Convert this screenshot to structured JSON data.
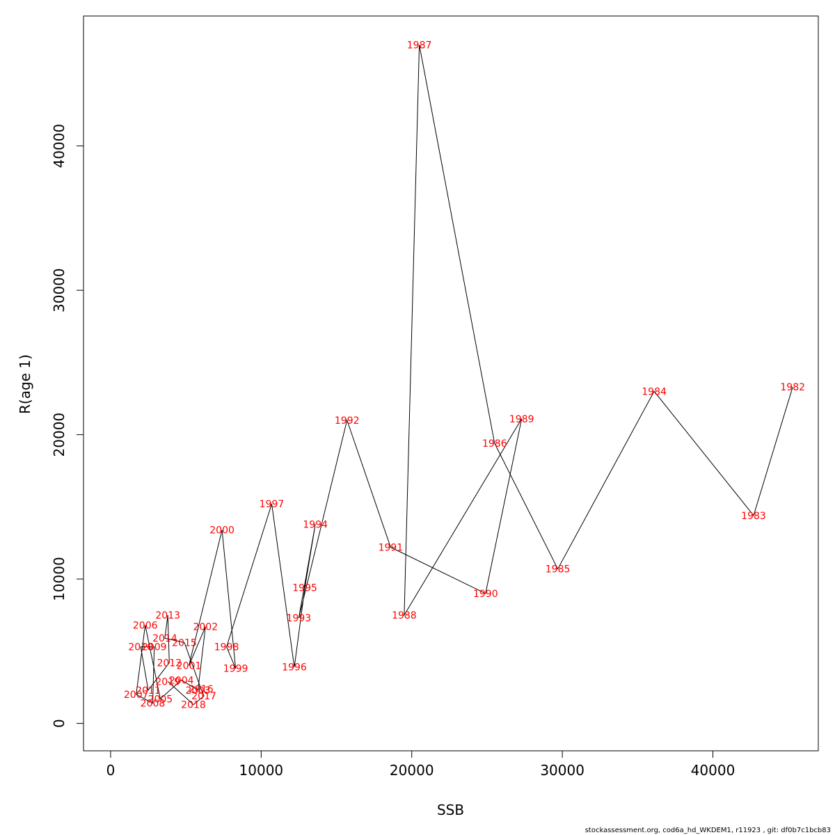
{
  "chart_data": {
    "type": "line",
    "xlabel": "SSB",
    "ylabel": "R(age 1)",
    "xlim": [
      -1800,
      47000
    ],
    "ylim": [
      -1900,
      49000
    ],
    "xticks": [
      0,
      10000,
      20000,
      30000,
      40000
    ],
    "yticks": [
      0,
      10000,
      20000,
      30000,
      40000
    ],
    "point_label_color": "#ff0000",
    "line_color": "#000000",
    "points": [
      {
        "year": "1982",
        "x": 45300,
        "y": 23300
      },
      {
        "year": "1983",
        "x": 42700,
        "y": 14400
      },
      {
        "year": "1984",
        "x": 36100,
        "y": 23000
      },
      {
        "year": "1985",
        "x": 29700,
        "y": 10700
      },
      {
        "year": "1986",
        "x": 25500,
        "y": 19400
      },
      {
        "year": "1987",
        "x": 20500,
        "y": 47000
      },
      {
        "year": "1988",
        "x": 19500,
        "y": 7500
      },
      {
        "year": "1989",
        "x": 27300,
        "y": 21100
      },
      {
        "year": "1990",
        "x": 24900,
        "y": 9000
      },
      {
        "year": "1991",
        "x": 18600,
        "y": 12200
      },
      {
        "year": "1992",
        "x": 15700,
        "y": 21000
      },
      {
        "year": "1993",
        "x": 12500,
        "y": 7300
      },
      {
        "year": "1994",
        "x": 13600,
        "y": 13800
      },
      {
        "year": "1995",
        "x": 12900,
        "y": 9400
      },
      {
        "year": "1996",
        "x": 12200,
        "y": 3900
      },
      {
        "year": "1997",
        "x": 10700,
        "y": 15200
      },
      {
        "year": "1998",
        "x": 7700,
        "y": 5300
      },
      {
        "year": "1999",
        "x": 8300,
        "y": 3800
      },
      {
        "year": "2000",
        "x": 7400,
        "y": 13400
      },
      {
        "year": "2001",
        "x": 5200,
        "y": 4000
      },
      {
        "year": "2002",
        "x": 6300,
        "y": 6700
      },
      {
        "year": "2003",
        "x": 5800,
        "y": 2300
      },
      {
        "year": "2004",
        "x": 4700,
        "y": 3000
      },
      {
        "year": "2005",
        "x": 3300,
        "y": 1700
      },
      {
        "year": "2006",
        "x": 2300,
        "y": 6800
      },
      {
        "year": "2007",
        "x": 1700,
        "y": 2000
      },
      {
        "year": "2008",
        "x": 2800,
        "y": 1400
      },
      {
        "year": "2009",
        "x": 2900,
        "y": 5300
      },
      {
        "year": "2010",
        "x": 2000,
        "y": 5300
      },
      {
        "year": "2011",
        "x": 2500,
        "y": 2300
      },
      {
        "year": "2012",
        "x": 3900,
        "y": 4200
      },
      {
        "year": "2013",
        "x": 3800,
        "y": 7500
      },
      {
        "year": "2014",
        "x": 3600,
        "y": 5900
      },
      {
        "year": "2015",
        "x": 4900,
        "y": 5600
      },
      {
        "year": "2016",
        "x": 6000,
        "y": 2400
      },
      {
        "year": "2017",
        "x": 6200,
        "y": 1900
      },
      {
        "year": "2018",
        "x": 5500,
        "y": 1300
      },
      {
        "year": "2019",
        "x": 3800,
        "y": 2900
      }
    ]
  },
  "footer": "stockassessment.org, cod6a_hd_WKDEM1, r11923 , git: df0b7c1bcb83"
}
